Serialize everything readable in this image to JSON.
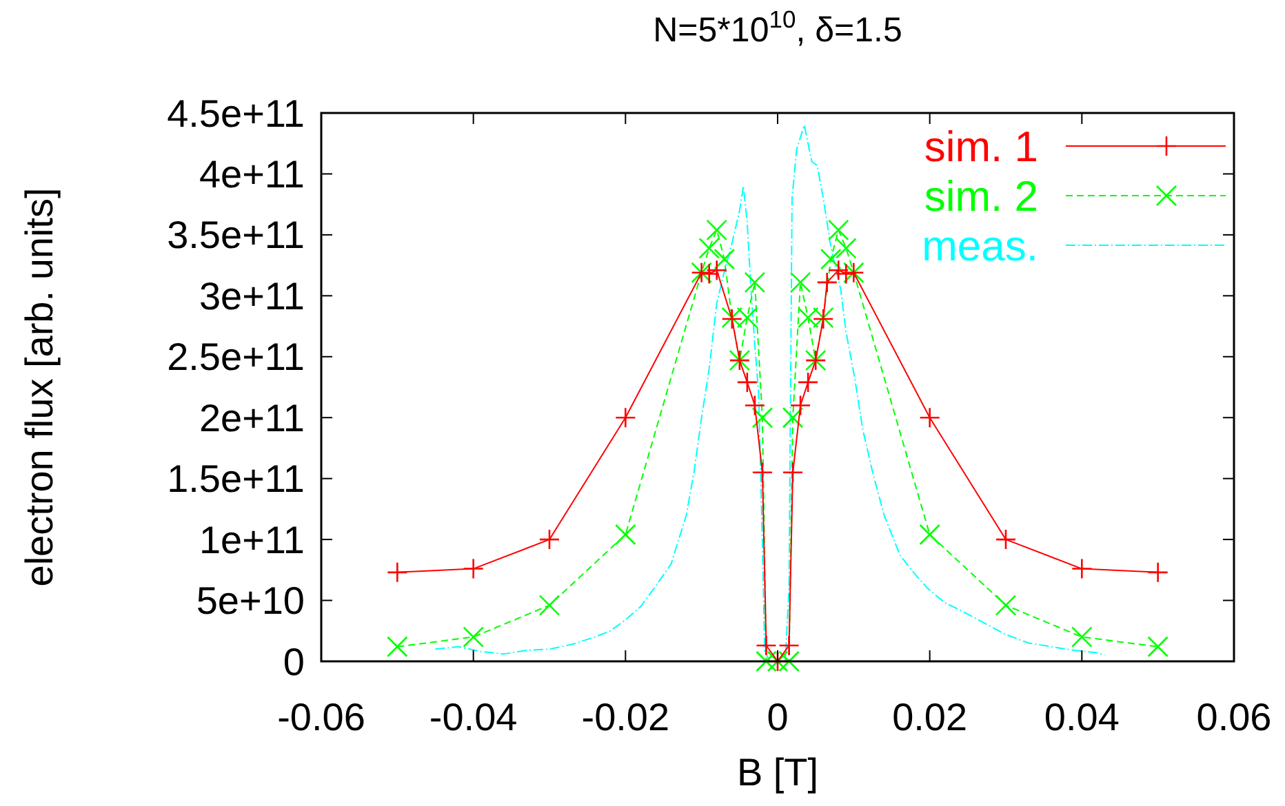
{
  "chart_data": {
    "type": "line",
    "title": "N=5*10$^{10}$, δ=1.5",
    "xlabel": "B [T]",
    "ylabel": "electron flux [arb. units]",
    "xlim": [
      -0.06,
      0.06
    ],
    "xticks": [
      -0.06,
      -0.04,
      -0.02,
      0,
      0.02,
      0.04,
      0.06
    ],
    "ylim": [
      0,
      450000000000
    ],
    "yticks": [
      0,
      {
        "value": 50000000000,
        "label": "5e+10"
      },
      {
        "value": 100000000000,
        "label": "1e+11"
      },
      {
        "value": 150000000000,
        "label": "1.5e+11"
      },
      {
        "value": 200000000000,
        "label": "2e+11"
      },
      {
        "value": 250000000000,
        "label": "2.5e+11"
      },
      {
        "value": 300000000000,
        "label": "3e+11"
      },
      {
        "value": 350000000000,
        "label": "3.5e+11"
      },
      {
        "value": 400000000000,
        "label": "4e+11"
      },
      {
        "value": 450000000000,
        "label": "4.5e+11"
      }
    ],
    "grid": false,
    "legend": "top right",
    "series": [
      {
        "name": "sim. 1",
        "color": "#ff0000",
        "marker": "cross",
        "line_style": "solid",
        "x": [
          -0.05,
          -0.04,
          -0.03,
          -0.02,
          -0.01,
          -0.009,
          -0.008,
          -0.006,
          -0.005,
          -0.004,
          -0.003,
          -0.002,
          -0.0015,
          0,
          0.0015,
          0.002,
          0.003,
          0.004,
          0.005,
          0.006,
          0.0065,
          0.008,
          0.009,
          0.01,
          0.02,
          0.03,
          0.04,
          0.05
        ],
        "values": [
          73000000000,
          76000000000,
          100000000000,
          200000000000,
          319000000000,
          318000000000,
          321000000000,
          281000000000,
          247000000000,
          229000000000,
          210000000000,
          155000000000,
          13000000000,
          0,
          13000000000,
          155000000000,
          210000000000,
          229000000000,
          247000000000,
          281000000000,
          311000000000,
          321000000000,
          318000000000,
          319000000000,
          200000000000,
          100000000000,
          76000000000,
          73000000000
        ]
      },
      {
        "name": "sim. 2",
        "color": "#00ff00",
        "marker": "x",
        "line_style": "dashed",
        "x": [
          -0.05,
          -0.04,
          -0.03,
          -0.02,
          -0.01,
          -0.009,
          -0.008,
          -0.007,
          -0.006,
          -0.005,
          -0.004,
          -0.003,
          -0.002,
          -0.0015,
          0,
          0.0015,
          0.002,
          0.003,
          0.004,
          0.005,
          0.006,
          0.007,
          0.008,
          0.009,
          0.01,
          0.02,
          0.03,
          0.04,
          0.05
        ],
        "values": [
          12000000000,
          20000000000,
          46000000000,
          104000000000,
          319000000000,
          339000000000,
          354000000000,
          330000000000,
          282000000000,
          247000000000,
          282000000000,
          311000000000,
          200000000000,
          0,
          0,
          0,
          200000000000,
          311000000000,
          282000000000,
          247000000000,
          282000000000,
          330000000000,
          354000000000,
          339000000000,
          319000000000,
          104000000000,
          46000000000,
          20000000000,
          12000000000
        ]
      },
      {
        "name": "meas.",
        "color": "#00ffff",
        "marker": "none",
        "line_style": "dotted",
        "x": [
          -0.045,
          -0.042,
          -0.039,
          -0.036,
          -0.033,
          -0.03,
          -0.027,
          -0.024,
          -0.022,
          -0.02,
          -0.018,
          -0.016,
          -0.014,
          -0.012,
          -0.011,
          -0.01,
          -0.009,
          -0.008,
          -0.007,
          -0.006,
          -0.005,
          -0.0045,
          -0.004,
          -0.0035,
          -0.003,
          -0.0025,
          -0.002,
          -0.0017,
          -0.001,
          0,
          0.001,
          0.0015,
          0.0019,
          0.0025,
          0.003,
          0.0035,
          0.004,
          0.0045,
          0.0052,
          0.006,
          0.007,
          0.0083,
          0.009,
          0.0101,
          0.0112,
          0.0125,
          0.014,
          0.0161,
          0.018,
          0.0197,
          0.022,
          0.024,
          0.027,
          0.03,
          0.033,
          0.036,
          0.039,
          0.042,
          0.043
        ],
        "values": [
          10000000000,
          12000000000,
          8000000000,
          6000000000,
          9000000000,
          10000000000,
          14000000000,
          20000000000,
          25000000000,
          34000000000,
          45000000000,
          62000000000,
          80000000000,
          120000000000,
          155000000000,
          200000000000,
          240000000000,
          294000000000,
          320000000000,
          343000000000,
          370000000000,
          390000000000,
          360000000000,
          305000000000,
          260000000000,
          220000000000,
          98000000000,
          8000000000,
          0,
          0,
          0,
          60000000000,
          380000000000,
          420000000000,
          430000000000,
          440000000000,
          425000000000,
          410000000000,
          407000000000,
          380000000000,
          340000000000,
          305000000000,
          270000000000,
          234000000000,
          190000000000,
          155000000000,
          120000000000,
          87000000000,
          72000000000,
          60000000000,
          48000000000,
          42000000000,
          32000000000,
          22000000000,
          15000000000,
          12000000000,
          9000000000,
          7000000000,
          5000000000
        ]
      }
    ]
  }
}
